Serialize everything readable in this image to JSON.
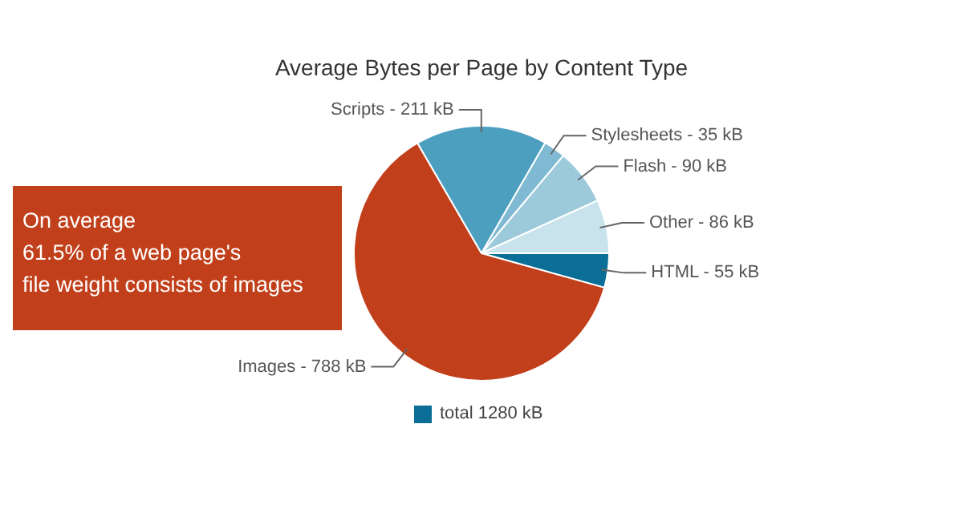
{
  "chart_data": {
    "type": "pie",
    "title": "Average Bytes per Page by Content Type",
    "categories": [
      "HTML",
      "Images",
      "Scripts",
      "Stylesheets",
      "Flash",
      "Other"
    ],
    "values": [
      55,
      788,
      211,
      35,
      90,
      86
    ],
    "value_labels": [
      "55 kB",
      "788 kB",
      "211 kB",
      "35 kB",
      "90 kB",
      "86 kB"
    ],
    "colors": [
      "#0b6e96",
      "#c1401b",
      "#4d9fc0",
      "#7fb9d2",
      "#9ccadb",
      "#c8e3ec"
    ],
    "annotations": [
      "On average\n61.5% of a web page's\nfile weight consists of images",
      "total 1280 kB"
    ]
  }
}
